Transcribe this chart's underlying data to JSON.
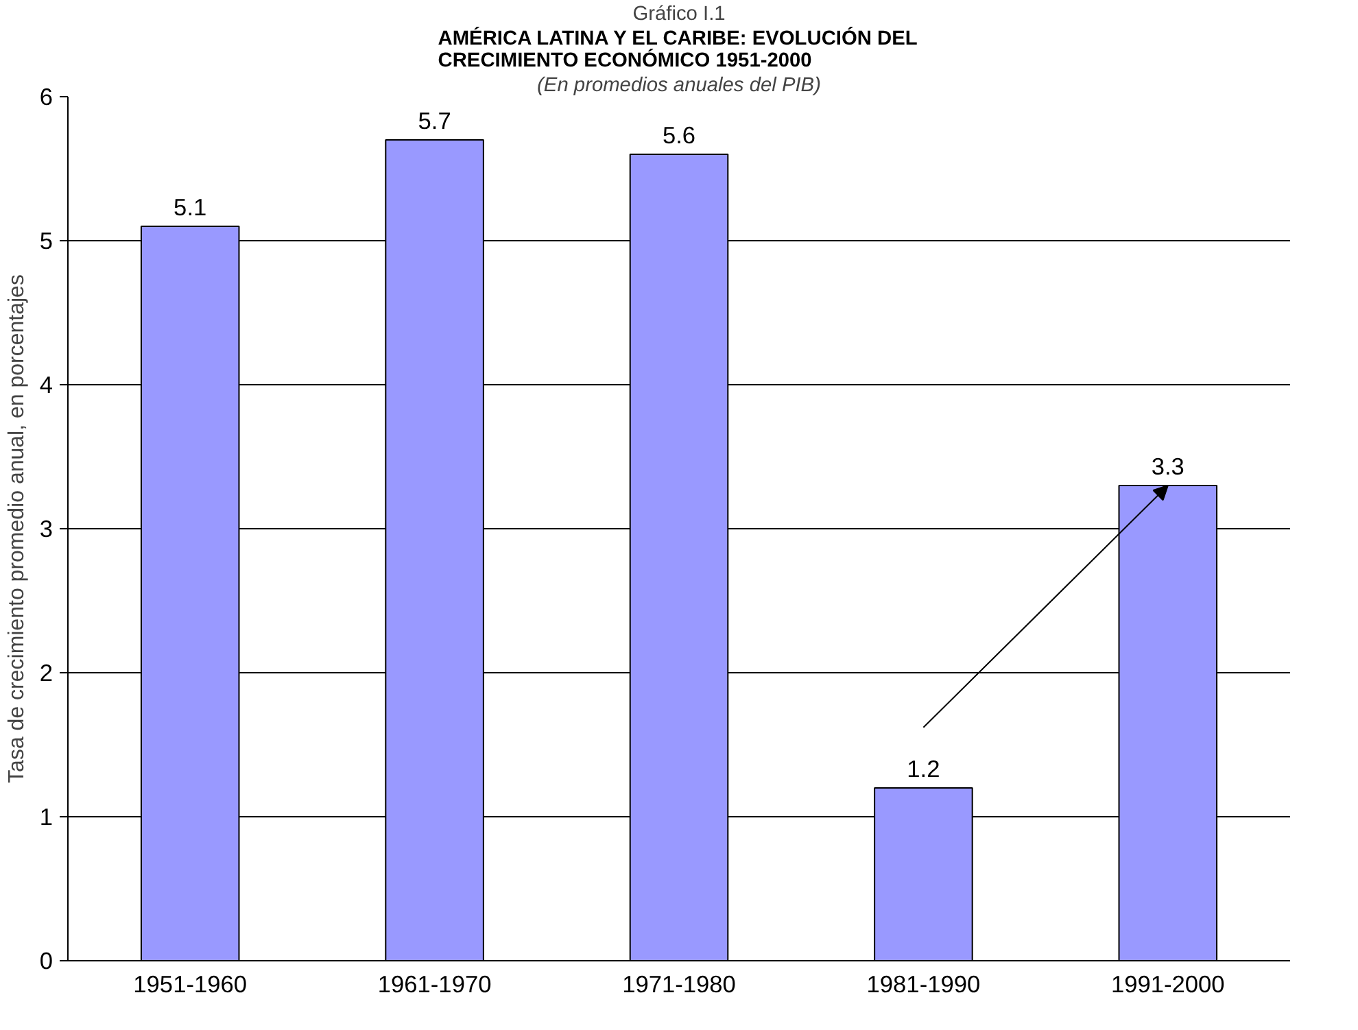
{
  "chart_data": {
    "type": "bar",
    "title": "AMÉRICA LATINA Y EL CARIBE: EVOLUCIÓN DEL\nCRECIMIENTO ECONÓMICO 1951-2000",
    "subtitle": "(En promedios anuales del PIB)",
    "annotations": [
      "Gráfico I.1"
    ],
    "ylabel": "Tasa de crecimiento promedio anual, en porcentajes",
    "categories": [
      "1951-1960",
      "1961-1970",
      "1971-1980",
      "1981-1990",
      "1991-2000"
    ],
    "values": [
      5.1,
      5.7,
      5.6,
      1.2,
      3.3
    ],
    "color": "#9999ff",
    "ylim": [
      0,
      6
    ],
    "yticks": [
      0,
      1,
      2,
      3,
      4,
      5,
      6
    ],
    "grid": "y",
    "data_labels": true
  }
}
